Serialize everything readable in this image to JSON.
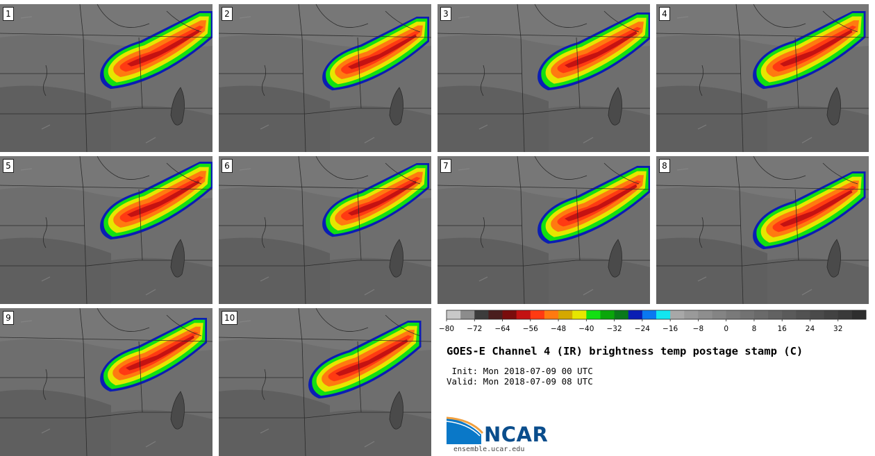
{
  "panels": [
    {
      "label": "1"
    },
    {
      "label": "2"
    },
    {
      "label": "3"
    },
    {
      "label": "4"
    },
    {
      "label": "5"
    },
    {
      "label": "6"
    },
    {
      "label": "7"
    },
    {
      "label": "8"
    },
    {
      "label": "9"
    },
    {
      "label": "10"
    }
  ],
  "colorbar": {
    "ticks": [
      "−80",
      "−72",
      "−64",
      "−56",
      "−48",
      "−40",
      "−32",
      "−24",
      "−16",
      "−8",
      "0",
      "8",
      "16",
      "24",
      "32"
    ],
    "colors": [
      "#c8c8c8",
      "#8c8c8c",
      "#3c3c3c",
      "#4a1e1e",
      "#7a0c0c",
      "#c41212",
      "#ff3a12",
      "#ff7a10",
      "#d4a800",
      "#e6e600",
      "#12e012",
      "#0aa60a",
      "#0a7a1a",
      "#0a1eb4",
      "#0a78f0",
      "#12e6f0",
      "#a8a8a8",
      "#9a9a9a",
      "#8e8e8e",
      "#848484",
      "#7a7a7a",
      "#727272",
      "#6a6a6a",
      "#626262",
      "#5a5a5a",
      "#525252",
      "#4a4a4a",
      "#424242",
      "#3a3a3a",
      "#2e2e2e"
    ]
  },
  "title": "GOES-E Channel 4 (IR) brightness temp postage stamp (C)",
  "init": " Init: Mon 2018-07-09 00 UTC",
  "valid": "Valid: Mon 2018-07-09 08 UTC",
  "logo": {
    "name": "NCAR",
    "url": "ensemble.ucar.edu",
    "colors": {
      "blue": "#0a78c8",
      "orange": "#f0a040",
      "text": "#0a4d8c"
    }
  }
}
